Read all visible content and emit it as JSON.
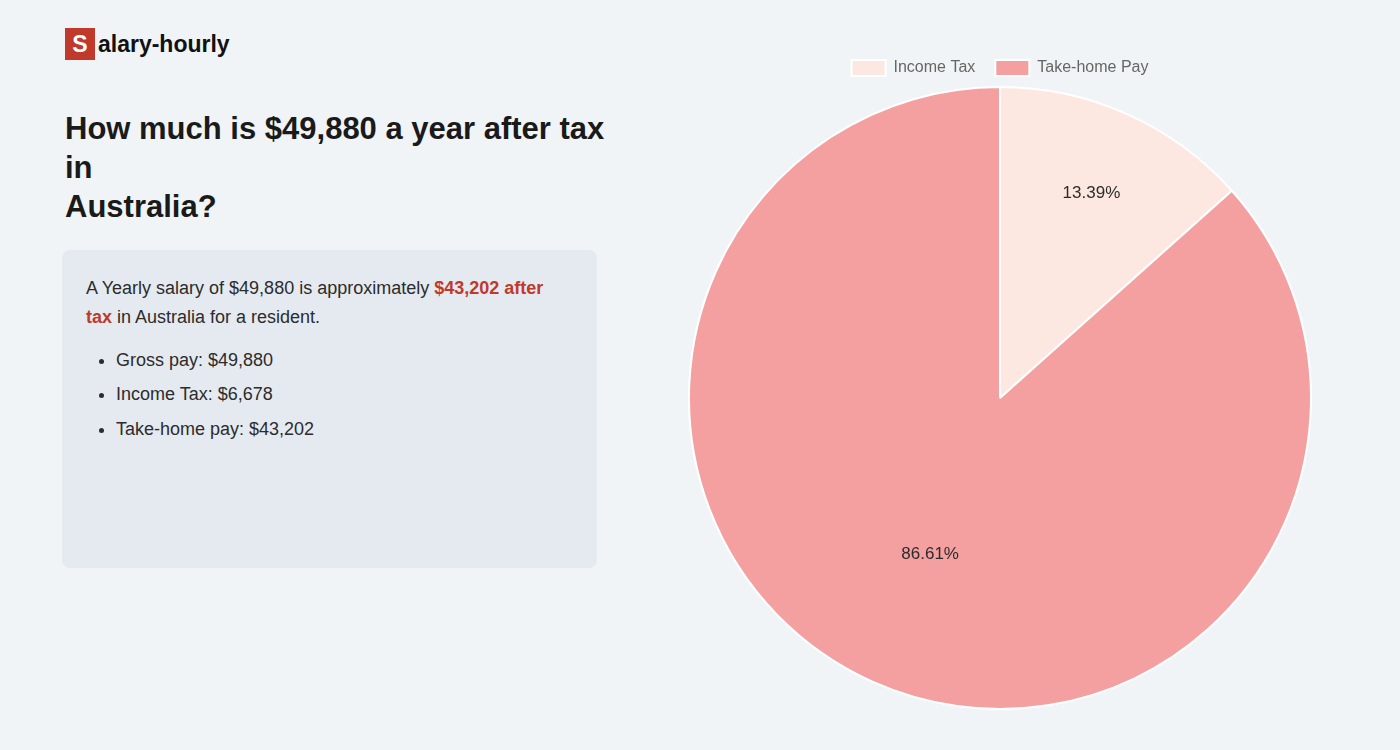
{
  "chart_data": {
    "type": "pie",
    "title": "How much is $49,880 a year after tax in\nAustralia?",
    "annotations": [
      "S",
      "alary-hourly",
      "A Yearly salary of $49,880 is approximately",
      "$43,202 after tax",
      "in",
      "Australia for a resident.",
      "Gross pay: $49,880",
      "Income Tax: $6,678",
      "Take-home pay: $43,202"
    ],
    "categories": [
      "Income Tax",
      "Take-home Pay"
    ],
    "values": [
      13.39,
      86.61
    ],
    "value_labels": [
      "13.39%",
      "86.61%"
    ],
    "colors": [
      "#fce8e0",
      "#f4a0a0"
    ],
    "data_labels": true,
    "legend": "top"
  }
}
